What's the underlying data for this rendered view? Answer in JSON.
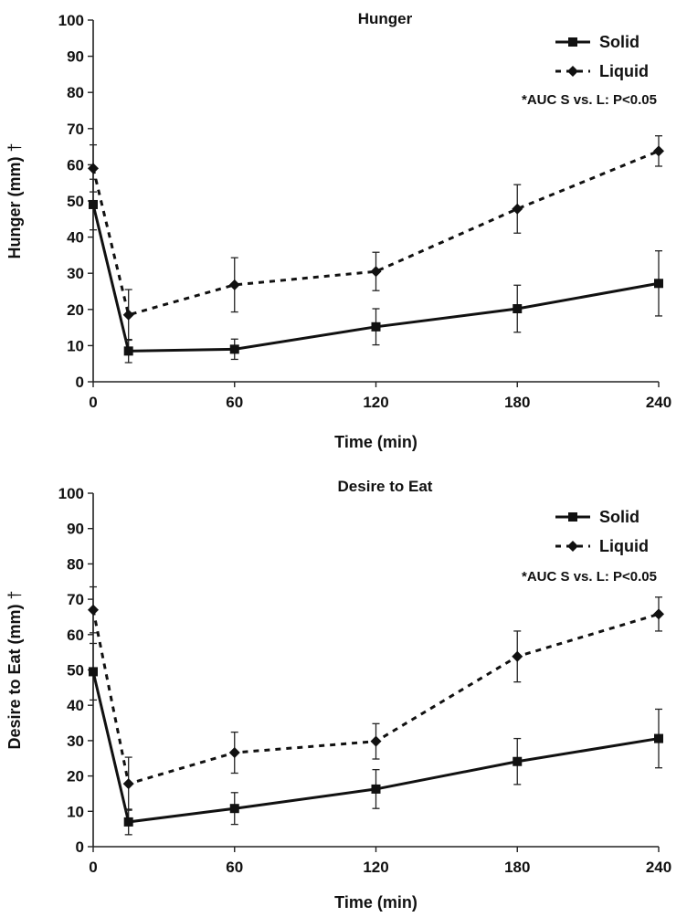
{
  "chart_data": [
    {
      "type": "line",
      "title": "Hunger",
      "xlabel": "Time (min)",
      "ylabel": "Hunger (mm)",
      "ylabel_suffix": "†",
      "xlim": [
        0,
        240
      ],
      "ylim": [
        0,
        100
      ],
      "x_ticks": [
        0,
        60,
        120,
        180,
        240
      ],
      "y_ticks": [
        0,
        10,
        20,
        30,
        40,
        50,
        60,
        70,
        80,
        90,
        100
      ],
      "legend_position": "top-right",
      "annotation": "*AUC S vs. L:  P<0.05",
      "series": [
        {
          "name": "Solid",
          "line_style": "solid",
          "marker": "square",
          "x": [
            0,
            15,
            60,
            120,
            180,
            240
          ],
          "values": [
            49,
            8.5,
            9,
            15.2,
            20.2,
            27.2
          ],
          "error": [
            7,
            3.2,
            2.8,
            5,
            6.5,
            9
          ]
        },
        {
          "name": "Liquid",
          "line_style": "dashed",
          "marker": "diamond",
          "x": [
            0,
            15,
            60,
            120,
            180,
            240
          ],
          "values": [
            59,
            18.5,
            26.8,
            30.5,
            47.8,
            63.8
          ],
          "error": [
            6.5,
            7,
            7.5,
            5.3,
            6.7,
            4.2
          ]
        }
      ]
    },
    {
      "type": "line",
      "title": "Desire to Eat",
      "xlabel": "Time (min)",
      "ylabel": "Desire to Eat (mm)",
      "ylabel_suffix": "†",
      "xlim": [
        0,
        240
      ],
      "ylim": [
        0,
        100
      ],
      "x_ticks": [
        0,
        60,
        120,
        180,
        240
      ],
      "y_ticks": [
        0,
        10,
        20,
        30,
        40,
        50,
        60,
        70,
        80,
        90,
        100
      ],
      "legend_position": "top-right",
      "annotation": "*AUC S vs. L:  P<0.05",
      "series": [
        {
          "name": "Solid",
          "line_style": "solid",
          "marker": "square",
          "x": [
            0,
            15,
            60,
            120,
            180,
            240
          ],
          "values": [
            49.5,
            7,
            10.8,
            16.3,
            24.1,
            30.6
          ],
          "error": [
            8,
            3.6,
            4.5,
            5.5,
            6.5,
            8.3
          ]
        },
        {
          "name": "Liquid",
          "line_style": "dashed",
          "marker": "diamond",
          "x": [
            0,
            15,
            60,
            120,
            180,
            240
          ],
          "values": [
            67,
            17.8,
            26.6,
            29.8,
            53.8,
            65.8
          ],
          "error": [
            6.5,
            7.5,
            5.8,
            5,
            7.2,
            4.8
          ]
        }
      ]
    }
  ]
}
